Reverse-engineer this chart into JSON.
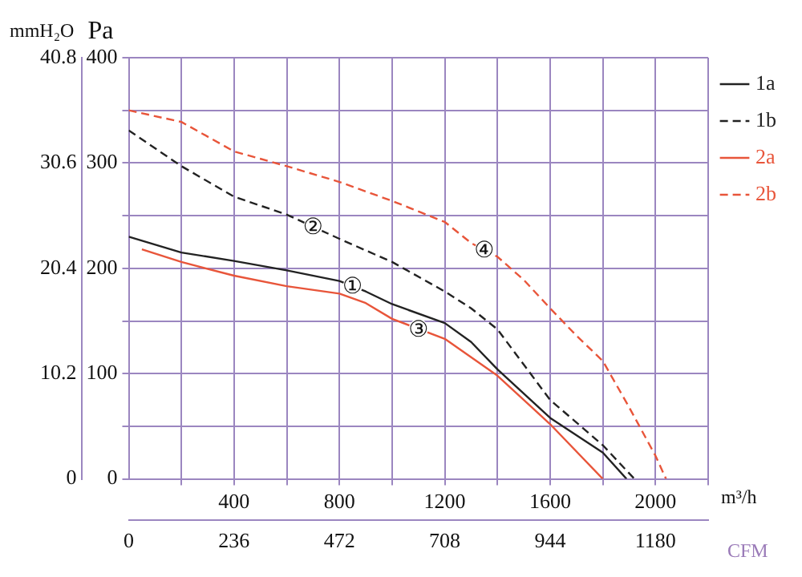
{
  "chart_data": {
    "type": "line",
    "xlabel": "m³/h",
    "ylabel": "Pa",
    "y2label": "mmH₂O",
    "x2label": "CFM",
    "xlim": [
      0,
      2200
    ],
    "xticks": [
      {
        "value": 200,
        "label": null
      },
      400,
      {
        "value": 600,
        "label": null
      },
      800,
      {
        "value": 1000,
        "label": null
      },
      1200,
      {
        "value": 1400,
        "label": null
      },
      1600,
      {
        "value": 1800,
        "label": null
      },
      2000,
      {
        "value": 2200,
        "label": null
      }
    ],
    "ylim": [
      0,
      400
    ],
    "yticks": [
      0,
      {
        "value": 50,
        "label": null
      },
      100,
      {
        "value": 150,
        "label": null
      },
      200,
      {
        "value": 250,
        "label": null
      },
      300,
      {
        "value": 350,
        "label": null
      },
      400
    ],
    "y2lim": [
      0,
      40.8
    ],
    "y2ticks": [
      0,
      10.2,
      20.4,
      30.6,
      40.8
    ],
    "x2lim": [
      0,
      1298
    ],
    "x2ticks": [
      0,
      236,
      472,
      708,
      944,
      1180
    ],
    "grid": true,
    "legend": "right",
    "marker": "none",
    "series": [
      {
        "name": "1a",
        "color": "#222222",
        "line_style": "solid",
        "x": [
          0,
          200,
          400,
          600,
          800,
          900,
          1000,
          1200,
          1300,
          1400,
          1600,
          1800,
          1890
        ],
        "values": [
          230,
          215,
          207,
          198,
          188,
          178,
          166,
          148,
          130,
          104,
          58,
          25,
          0
        ]
      },
      {
        "name": "1b",
        "color": "#222222",
        "line_style": "dashed",
        "x": [
          0,
          200,
          400,
          600,
          800,
          1000,
          1200,
          1300,
          1400,
          1600,
          1800,
          1920
        ],
        "values": [
          331,
          297,
          268,
          251,
          228,
          206,
          178,
          162,
          142,
          75,
          32,
          0
        ]
      },
      {
        "name": "2a",
        "color": "#e8553a",
        "line_style": "solid",
        "x": [
          50,
          200,
          400,
          600,
          800,
          900,
          1000,
          1200,
          1400,
          1600,
          1800
        ],
        "values": [
          218,
          206,
          193,
          183,
          176,
          167,
          152,
          133,
          98,
          52,
          0
        ]
      },
      {
        "name": "2b",
        "color": "#e8553a",
        "line_style": "dashed",
        "x": [
          0,
          200,
          400,
          600,
          800,
          1000,
          1200,
          1300,
          1400,
          1500,
          1600,
          1700,
          1800,
          1900,
          2000,
          2040
        ],
        "values": [
          350,
          339,
          311,
          297,
          282,
          264,
          244,
          224,
          211,
          189,
          162,
          136,
          112,
          68,
          22,
          0
        ]
      }
    ],
    "annotations": [
      {
        "text": "①",
        "x": 850,
        "y": 183
      },
      {
        "text": "②",
        "x": 700,
        "y": 239.5
      },
      {
        "text": "③",
        "x": 1100,
        "y": 142.5
      },
      {
        "text": "④",
        "x": 1350,
        "y": 217.5
      }
    ]
  }
}
